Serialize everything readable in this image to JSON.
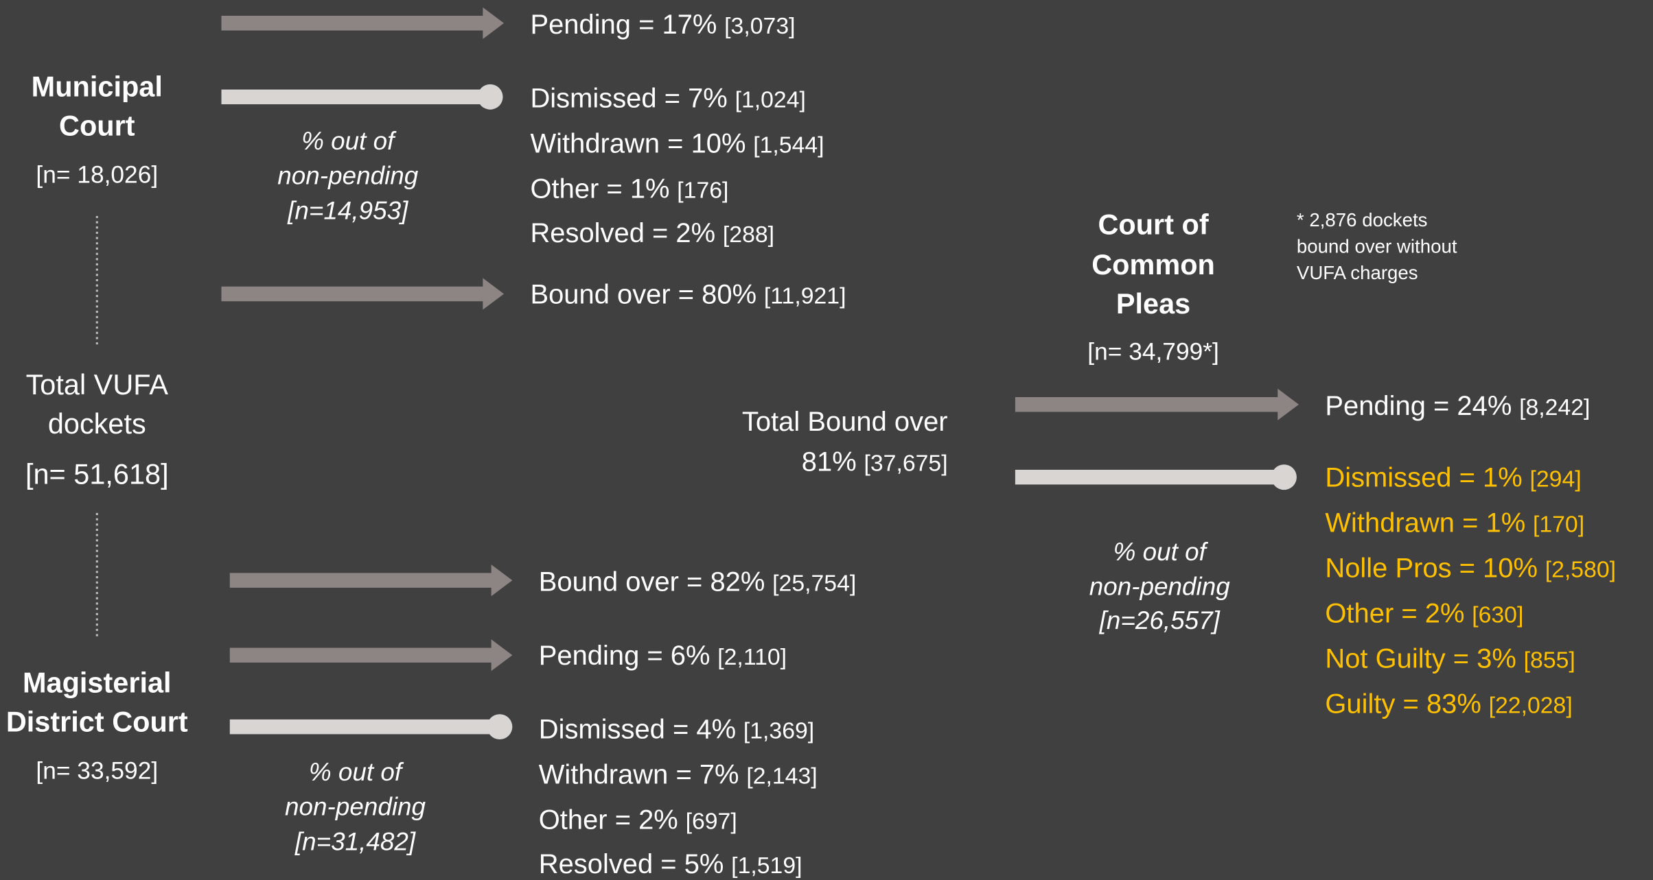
{
  "municipal_court": {
    "title": [
      "Municipal",
      "Court"
    ],
    "n": "[n= 18,026]",
    "note": [
      "% out of",
      "non-pending",
      "[n=14,953]"
    ],
    "outcomes": [
      {
        "label": "Pending = 17%",
        "count": "[3,073]"
      },
      {
        "label": "Dismissed = 7%",
        "count": "[1,024]"
      },
      {
        "label": "Withdrawn = 10%",
        "count": "[1,544]"
      },
      {
        "label": "Other = 1%",
        "count": "[176]"
      },
      {
        "label": "Resolved = 2%",
        "count": "[288]"
      },
      {
        "label": "Bound over = 80%",
        "count": "[11,921]"
      }
    ]
  },
  "total_vufa": {
    "title": [
      "Total VUFA",
      "dockets"
    ],
    "n": "[n= 51,618]"
  },
  "magisterial_district_court": {
    "title": [
      "Magisterial",
      "District Court"
    ],
    "n": "[n= 33,592]",
    "note": [
      "% out of",
      "non-pending",
      "[n=31,482]"
    ],
    "outcomes": [
      {
        "label": "Bound over = 82%",
        "count": "[25,754]"
      },
      {
        "label": "Pending = 6%",
        "count": "[2,110]"
      },
      {
        "label": "Dismissed = 4%",
        "count": "[1,369]"
      },
      {
        "label": "Withdrawn = 7%",
        "count": "[2,143]"
      },
      {
        "label": "Other = 2%",
        "count": "[697]"
      },
      {
        "label": "Resolved = 5%",
        "count": "[1,519]"
      }
    ]
  },
  "total_bound_over": {
    "label": "Total Bound over",
    "value": "81%",
    "count": "[37,675]"
  },
  "court_of_common_pleas": {
    "title": [
      "Court of",
      "Common",
      "Pleas"
    ],
    "n": "[n= 34,799*]",
    "footnote": [
      "* 2,876 dockets",
      "bound over without",
      "VUFA charges"
    ],
    "note": [
      "% out of",
      "non-pending",
      "[n=26,557]"
    ],
    "outcomes": [
      {
        "label": "Pending = 24%",
        "count": "[8,242]"
      },
      {
        "label": "Dismissed = 1%",
        "count": "[294]"
      },
      {
        "label": "Withdrawn = 1%",
        "count": "[170]"
      },
      {
        "label": "Nolle Pros = 10%",
        "count": "[2,580]"
      },
      {
        "label": "Other = 2%",
        "count": "[630]"
      },
      {
        "label": "Not Guilty = 3%",
        "count": "[855]"
      },
      {
        "label": "Guilty = 83%",
        "count": "[22,028]"
      }
    ]
  }
}
